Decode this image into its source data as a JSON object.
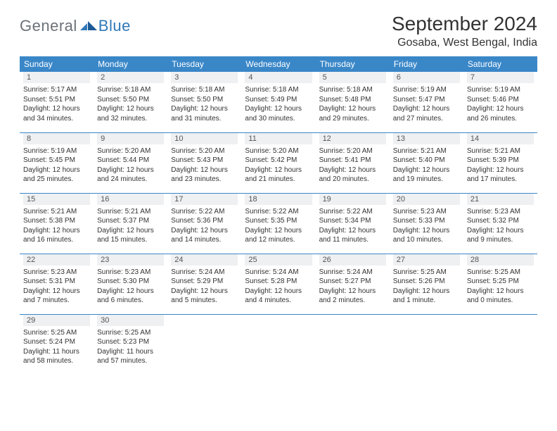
{
  "logo": {
    "text1": "General",
    "text2": "Blue",
    "color1": "#6b7278",
    "color2": "#3078b8"
  },
  "header": {
    "month": "September 2024",
    "location": "Gosaba, West Bengal, India"
  },
  "theme": {
    "header_bg": "#3a87c8",
    "header_fg": "#ffffff",
    "daynum_bg": "#eef0f2",
    "border": "#3a87c8",
    "body_font": "Arial"
  },
  "weekdays": [
    "Sunday",
    "Monday",
    "Tuesday",
    "Wednesday",
    "Thursday",
    "Friday",
    "Saturday"
  ],
  "weeks": [
    [
      {
        "n": "1",
        "sunrise": "5:17 AM",
        "sunset": "5:51 PM",
        "daylight": "12 hours and 34 minutes."
      },
      {
        "n": "2",
        "sunrise": "5:18 AM",
        "sunset": "5:50 PM",
        "daylight": "12 hours and 32 minutes."
      },
      {
        "n": "3",
        "sunrise": "5:18 AM",
        "sunset": "5:50 PM",
        "daylight": "12 hours and 31 minutes."
      },
      {
        "n": "4",
        "sunrise": "5:18 AM",
        "sunset": "5:49 PM",
        "daylight": "12 hours and 30 minutes."
      },
      {
        "n": "5",
        "sunrise": "5:18 AM",
        "sunset": "5:48 PM",
        "daylight": "12 hours and 29 minutes."
      },
      {
        "n": "6",
        "sunrise": "5:19 AM",
        "sunset": "5:47 PM",
        "daylight": "12 hours and 27 minutes."
      },
      {
        "n": "7",
        "sunrise": "5:19 AM",
        "sunset": "5:46 PM",
        "daylight": "12 hours and 26 minutes."
      }
    ],
    [
      {
        "n": "8",
        "sunrise": "5:19 AM",
        "sunset": "5:45 PM",
        "daylight": "12 hours and 25 minutes."
      },
      {
        "n": "9",
        "sunrise": "5:20 AM",
        "sunset": "5:44 PM",
        "daylight": "12 hours and 24 minutes."
      },
      {
        "n": "10",
        "sunrise": "5:20 AM",
        "sunset": "5:43 PM",
        "daylight": "12 hours and 23 minutes."
      },
      {
        "n": "11",
        "sunrise": "5:20 AM",
        "sunset": "5:42 PM",
        "daylight": "12 hours and 21 minutes."
      },
      {
        "n": "12",
        "sunrise": "5:20 AM",
        "sunset": "5:41 PM",
        "daylight": "12 hours and 20 minutes."
      },
      {
        "n": "13",
        "sunrise": "5:21 AM",
        "sunset": "5:40 PM",
        "daylight": "12 hours and 19 minutes."
      },
      {
        "n": "14",
        "sunrise": "5:21 AM",
        "sunset": "5:39 PM",
        "daylight": "12 hours and 17 minutes."
      }
    ],
    [
      {
        "n": "15",
        "sunrise": "5:21 AM",
        "sunset": "5:38 PM",
        "daylight": "12 hours and 16 minutes."
      },
      {
        "n": "16",
        "sunrise": "5:21 AM",
        "sunset": "5:37 PM",
        "daylight": "12 hours and 15 minutes."
      },
      {
        "n": "17",
        "sunrise": "5:22 AM",
        "sunset": "5:36 PM",
        "daylight": "12 hours and 14 minutes."
      },
      {
        "n": "18",
        "sunrise": "5:22 AM",
        "sunset": "5:35 PM",
        "daylight": "12 hours and 12 minutes."
      },
      {
        "n": "19",
        "sunrise": "5:22 AM",
        "sunset": "5:34 PM",
        "daylight": "12 hours and 11 minutes."
      },
      {
        "n": "20",
        "sunrise": "5:23 AM",
        "sunset": "5:33 PM",
        "daylight": "12 hours and 10 minutes."
      },
      {
        "n": "21",
        "sunrise": "5:23 AM",
        "sunset": "5:32 PM",
        "daylight": "12 hours and 9 minutes."
      }
    ],
    [
      {
        "n": "22",
        "sunrise": "5:23 AM",
        "sunset": "5:31 PM",
        "daylight": "12 hours and 7 minutes."
      },
      {
        "n": "23",
        "sunrise": "5:23 AM",
        "sunset": "5:30 PM",
        "daylight": "12 hours and 6 minutes."
      },
      {
        "n": "24",
        "sunrise": "5:24 AM",
        "sunset": "5:29 PM",
        "daylight": "12 hours and 5 minutes."
      },
      {
        "n": "25",
        "sunrise": "5:24 AM",
        "sunset": "5:28 PM",
        "daylight": "12 hours and 4 minutes."
      },
      {
        "n": "26",
        "sunrise": "5:24 AM",
        "sunset": "5:27 PM",
        "daylight": "12 hours and 2 minutes."
      },
      {
        "n": "27",
        "sunrise": "5:25 AM",
        "sunset": "5:26 PM",
        "daylight": "12 hours and 1 minute."
      },
      {
        "n": "28",
        "sunrise": "5:25 AM",
        "sunset": "5:25 PM",
        "daylight": "12 hours and 0 minutes."
      }
    ],
    [
      {
        "n": "29",
        "sunrise": "5:25 AM",
        "sunset": "5:24 PM",
        "daylight": "11 hours and 58 minutes."
      },
      {
        "n": "30",
        "sunrise": "5:25 AM",
        "sunset": "5:23 PM",
        "daylight": "11 hours and 57 minutes."
      },
      null,
      null,
      null,
      null,
      null
    ]
  ],
  "labels": {
    "sunrise": "Sunrise:",
    "sunset": "Sunset:",
    "daylight": "Daylight:"
  }
}
